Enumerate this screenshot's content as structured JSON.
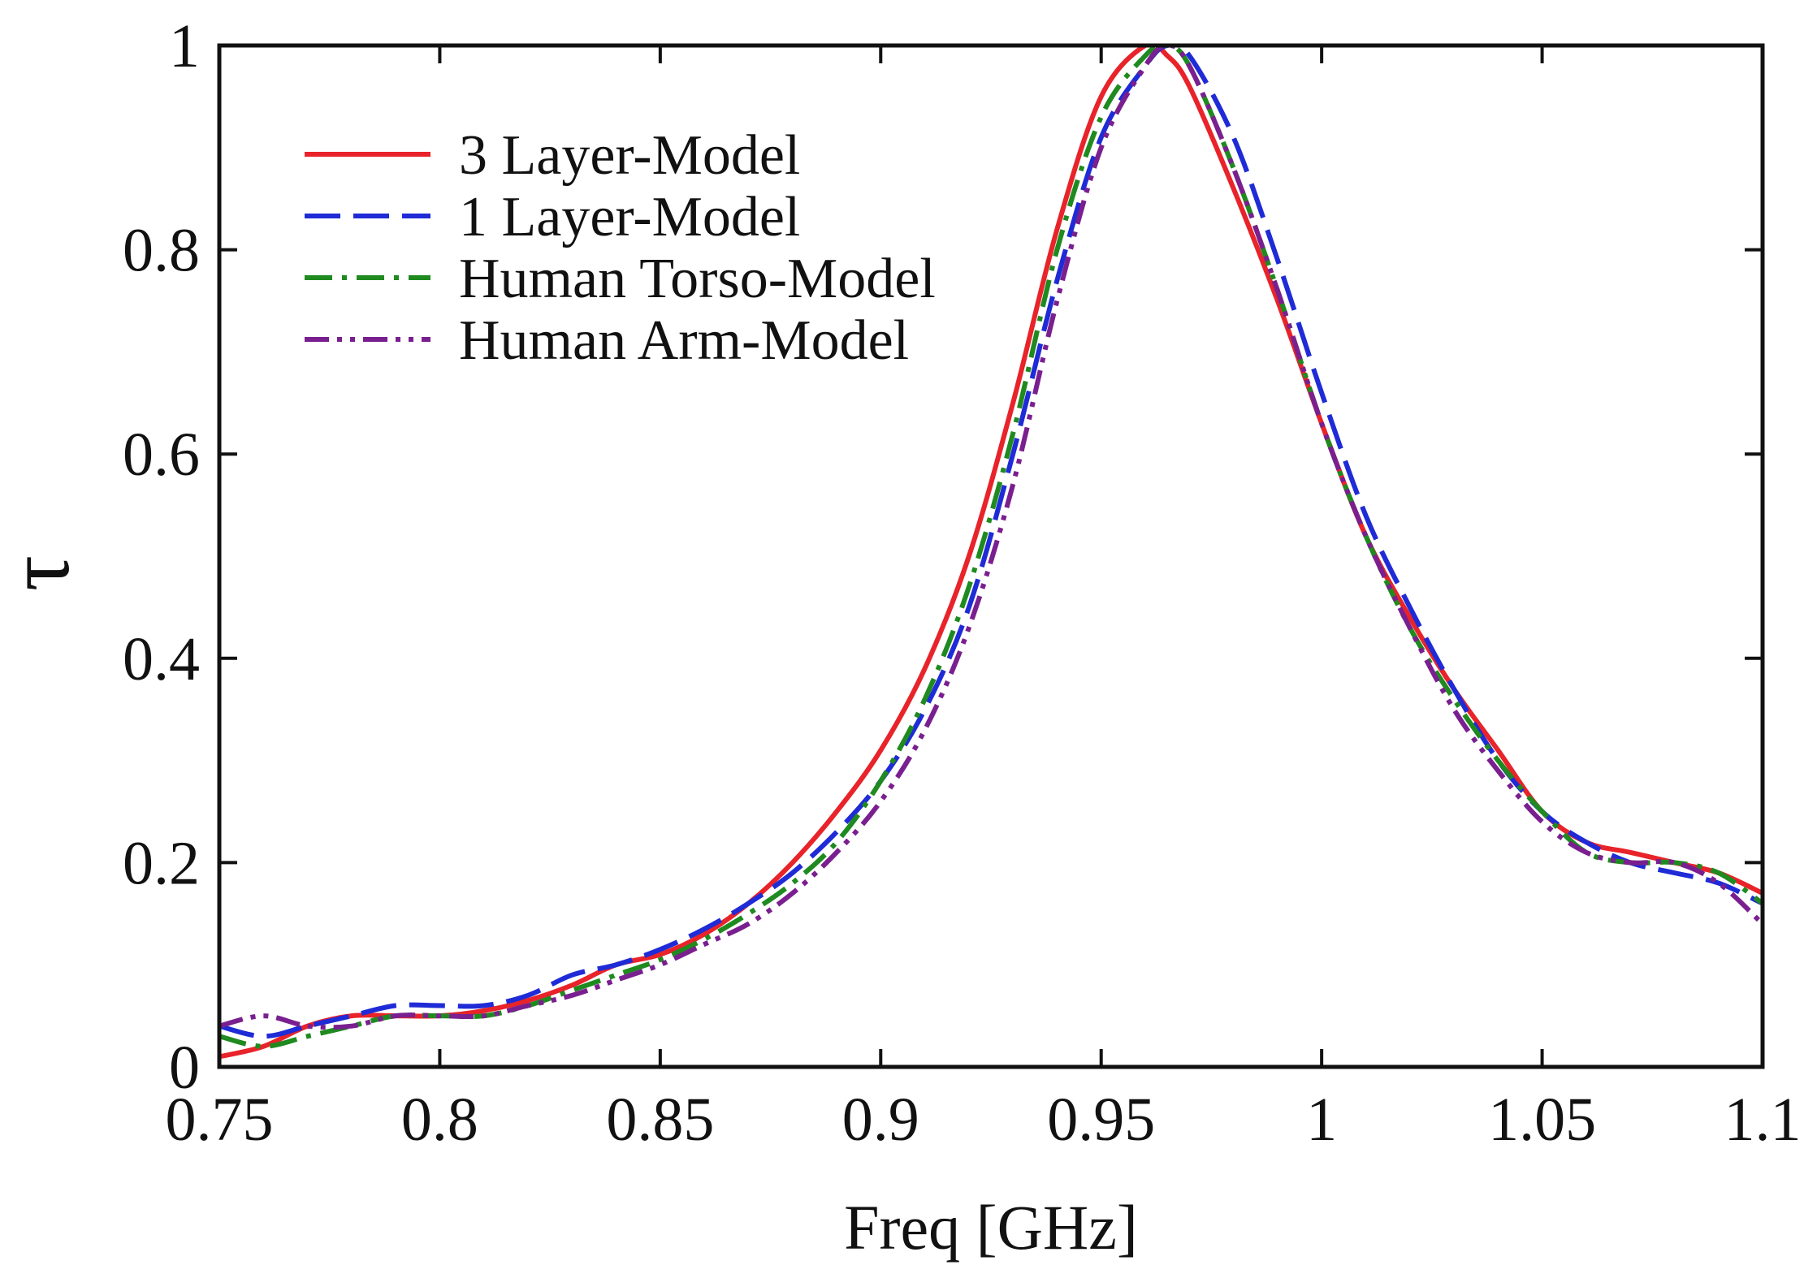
{
  "chart_data": {
    "type": "line",
    "title": "",
    "xlabel": "Freq [GHz]",
    "ylabel": "τ",
    "xlim": [
      0.75,
      1.1
    ],
    "ylim": [
      0,
      1
    ],
    "x_ticks": [
      0.75,
      0.8,
      0.85,
      0.9,
      0.95,
      1.0,
      1.05,
      1.1
    ],
    "x_tick_labels": [
      "0.75",
      "0.8",
      "0.85",
      "0.9",
      "0.95",
      "1",
      "1.05",
      "1.1"
    ],
    "y_ticks": [
      0,
      0.2,
      0.4,
      0.6,
      0.8,
      1.0
    ],
    "y_tick_labels": [
      "0",
      "0.2",
      "0.4",
      "0.6",
      "0.8",
      "1"
    ],
    "grid": false,
    "legend_position": "top-left",
    "x": [
      0.75,
      0.76,
      0.77,
      0.78,
      0.79,
      0.8,
      0.81,
      0.82,
      0.83,
      0.84,
      0.85,
      0.86,
      0.87,
      0.88,
      0.89,
      0.9,
      0.91,
      0.92,
      0.93,
      0.94,
      0.95,
      0.96,
      0.965,
      0.97,
      0.98,
      0.99,
      1.0,
      1.01,
      1.02,
      1.03,
      1.04,
      1.05,
      1.06,
      1.07,
      1.08,
      1.09,
      1.1
    ],
    "series": [
      {
        "name": "3 Layer-Model",
        "color": "#e8232a",
        "dash": "solid",
        "values": [
          0.01,
          0.02,
          0.04,
          0.05,
          0.05,
          0.05,
          0.055,
          0.065,
          0.08,
          0.1,
          0.11,
          0.13,
          0.16,
          0.2,
          0.25,
          0.31,
          0.39,
          0.5,
          0.65,
          0.82,
          0.95,
          1.0,
          0.99,
          0.96,
          0.86,
          0.75,
          0.63,
          0.52,
          0.44,
          0.37,
          0.31,
          0.25,
          0.22,
          0.21,
          0.2,
          0.19,
          0.17
        ]
      },
      {
        "name": "1 Layer-Model",
        "color": "#1f2bd6",
        "dash": "dashed",
        "values": [
          0.04,
          0.03,
          0.04,
          0.05,
          0.06,
          0.06,
          0.06,
          0.07,
          0.09,
          0.1,
          0.115,
          0.135,
          0.16,
          0.19,
          0.23,
          0.28,
          0.35,
          0.45,
          0.6,
          0.77,
          0.91,
          0.98,
          1.0,
          0.99,
          0.91,
          0.79,
          0.66,
          0.54,
          0.45,
          0.37,
          0.3,
          0.25,
          0.22,
          0.2,
          0.19,
          0.18,
          0.16
        ]
      },
      {
        "name": "Human Torso-Model",
        "color": "#1f8a1f",
        "dash": "dash-dot",
        "values": [
          0.03,
          0.02,
          0.03,
          0.04,
          0.05,
          0.05,
          0.05,
          0.06,
          0.075,
          0.09,
          0.105,
          0.125,
          0.15,
          0.18,
          0.22,
          0.28,
          0.36,
          0.47,
          0.62,
          0.8,
          0.93,
          0.99,
          1.0,
          0.98,
          0.88,
          0.76,
          0.63,
          0.52,
          0.43,
          0.36,
          0.3,
          0.25,
          0.21,
          0.2,
          0.2,
          0.19,
          0.16
        ]
      },
      {
        "name": "Human Arm-Model",
        "color": "#7a1f8f",
        "dash": "dash-dot-dot",
        "values": [
          0.04,
          0.05,
          0.04,
          0.04,
          0.05,
          0.05,
          0.05,
          0.06,
          0.07,
          0.085,
          0.1,
          0.12,
          0.14,
          0.17,
          0.21,
          0.26,
          0.33,
          0.43,
          0.57,
          0.75,
          0.9,
          0.98,
          1.0,
          0.98,
          0.88,
          0.76,
          0.63,
          0.52,
          0.43,
          0.35,
          0.29,
          0.24,
          0.21,
          0.2,
          0.2,
          0.18,
          0.14
        ]
      }
    ]
  }
}
